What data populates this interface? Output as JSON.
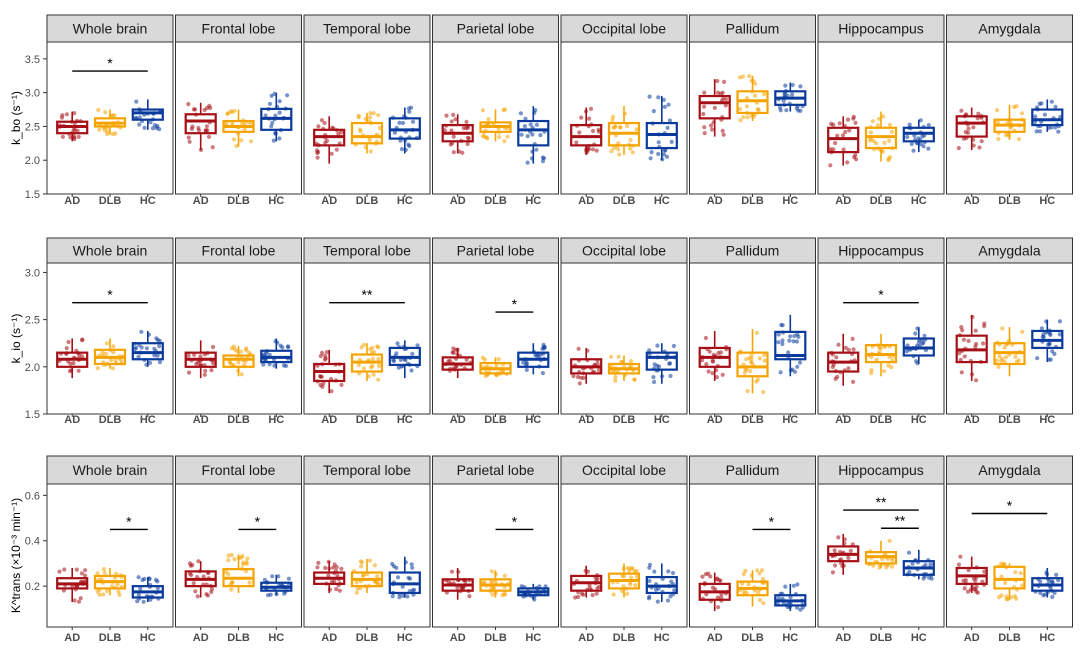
{
  "colors": {
    "AD": "#a50f15",
    "DLB": "#f5a300",
    "HC": "#0a3a9c",
    "strip_fill": "#d9d9d9",
    "axis_text": "#4d4d4d"
  },
  "groups": [
    "AD",
    "DLB",
    "HC"
  ],
  "chart_data": [
    {
      "type": "box",
      "ylabel": "k_bo (s⁻¹)",
      "ylim": [
        1.5,
        3.75
      ],
      "yticks": [
        "1.5",
        "2.0",
        "2.5",
        "3.0",
        "3.5"
      ],
      "ytick_values": [
        1.5,
        2.0,
        2.5,
        3.0,
        3.5
      ],
      "panels": [
        {
          "region": "Whole brain",
          "boxes": {
            "AD": [
              2.28,
              2.4,
              2.5,
              2.57,
              2.72
            ],
            "DLB": [
              2.38,
              2.5,
              2.55,
              2.62,
              2.75
            ],
            "HC": [
              2.45,
              2.6,
              2.7,
              2.75,
              2.9
            ]
          },
          "sig": [
            {
              "from": "AD",
              "to": "HC",
              "label": "*",
              "y": 3.32
            }
          ]
        },
        {
          "region": "Frontal lobe",
          "boxes": {
            "AD": [
              2.15,
              2.4,
              2.58,
              2.68,
              2.85
            ],
            "DLB": [
              2.2,
              2.42,
              2.5,
              2.58,
              2.75
            ],
            "HC": [
              2.28,
              2.45,
              2.62,
              2.76,
              3.0
            ]
          },
          "sig": []
        },
        {
          "region": "Temporal lobe",
          "boxes": {
            "AD": [
              1.95,
              2.22,
              2.35,
              2.45,
              2.65
            ],
            "DLB": [
              2.1,
              2.25,
              2.35,
              2.55,
              2.7
            ],
            "HC": [
              2.1,
              2.32,
              2.45,
              2.62,
              2.78
            ]
          },
          "sig": []
        },
        {
          "region": "Parietal lobe",
          "boxes": {
            "AD": [
              2.1,
              2.28,
              2.4,
              2.52,
              2.68
            ],
            "DLB": [
              2.28,
              2.42,
              2.5,
              2.56,
              2.75
            ],
            "HC": [
              1.95,
              2.22,
              2.45,
              2.58,
              2.8
            ]
          },
          "sig": []
        },
        {
          "region": "Occipital lobe",
          "boxes": {
            "AD": [
              2.08,
              2.22,
              2.35,
              2.52,
              2.78
            ],
            "DLB": [
              2.08,
              2.22,
              2.4,
              2.55,
              2.8
            ],
            "HC": [
              2.0,
              2.18,
              2.38,
              2.55,
              2.95
            ]
          },
          "sig": []
        },
        {
          "region": "Pallidum",
          "boxes": {
            "AD": [
              2.35,
              2.62,
              2.85,
              2.95,
              3.2
            ],
            "DLB": [
              2.58,
              2.7,
              2.88,
              3.02,
              3.25
            ],
            "HC": [
              2.72,
              2.82,
              2.92,
              3.02,
              3.15
            ]
          },
          "sig": []
        },
        {
          "region": "Hippocampus",
          "boxes": {
            "AD": [
              1.92,
              2.12,
              2.32,
              2.48,
              2.65
            ],
            "DLB": [
              1.98,
              2.18,
              2.35,
              2.48,
              2.72
            ],
            "HC": [
              2.12,
              2.28,
              2.4,
              2.48,
              2.6
            ]
          },
          "sig": []
        },
        {
          "region": "Amygdala",
          "boxes": {
            "AD": [
              2.15,
              2.35,
              2.55,
              2.65,
              2.78
            ],
            "DLB": [
              2.3,
              2.42,
              2.52,
              2.6,
              2.82
            ],
            "HC": [
              2.42,
              2.52,
              2.6,
              2.75,
              2.9
            ]
          },
          "sig": []
        }
      ]
    },
    {
      "type": "box",
      "ylabel": "k_io (s⁻¹)",
      "ylim": [
        1.5,
        3.1
      ],
      "yticks": [
        "1.5",
        "2.0",
        "2.5",
        "3.0"
      ],
      "ytick_values": [
        1.5,
        2.0,
        2.5,
        3.0
      ],
      "panels": [
        {
          "region": "Whole brain",
          "boxes": {
            "AD": [
              1.88,
              2.0,
              2.08,
              2.15,
              2.3
            ],
            "DLB": [
              1.98,
              2.03,
              2.1,
              2.18,
              2.3
            ],
            "HC": [
              2.0,
              2.08,
              2.15,
              2.25,
              2.38
            ]
          },
          "sig": [
            {
              "from": "AD",
              "to": "HC",
              "label": "*",
              "y": 2.68
            }
          ]
        },
        {
          "region": "Frontal lobe",
          "boxes": {
            "AD": [
              1.88,
              2.0,
              2.08,
              2.15,
              2.28
            ],
            "DLB": [
              1.9,
              2.0,
              2.08,
              2.12,
              2.22
            ],
            "HC": [
              1.98,
              2.05,
              2.1,
              2.17,
              2.3
            ]
          },
          "sig": []
        },
        {
          "region": "Temporal lobe",
          "boxes": {
            "AD": [
              1.72,
              1.85,
              1.95,
              2.03,
              2.18
            ],
            "DLB": [
              1.85,
              1.95,
              2.05,
              2.13,
              2.25
            ],
            "HC": [
              1.88,
              2.02,
              2.1,
              2.2,
              2.28
            ]
          },
          "sig": [
            {
              "from": "AD",
              "to": "HC",
              "label": "**",
              "y": 2.68
            }
          ]
        },
        {
          "region": "Parietal lobe",
          "boxes": {
            "AD": [
              1.88,
              1.97,
              2.03,
              2.1,
              2.2
            ],
            "DLB": [
              1.9,
              1.93,
              1.98,
              2.04,
              2.1
            ],
            "HC": [
              1.92,
              2.0,
              2.08,
              2.15,
              2.25
            ]
          },
          "sig": [
            {
              "from": "DLB",
              "to": "HC",
              "label": "*",
              "y": 2.58
            }
          ]
        },
        {
          "region": "Occipital lobe",
          "boxes": {
            "AD": [
              1.82,
              1.93,
              2.0,
              2.08,
              2.2
            ],
            "DLB": [
              1.85,
              1.93,
              1.98,
              2.03,
              2.12
            ],
            "HC": [
              1.82,
              1.97,
              2.1,
              2.15,
              2.25
            ]
          },
          "sig": []
        },
        {
          "region": "Pallidum",
          "boxes": {
            "AD": [
              1.85,
              2.0,
              2.1,
              2.2,
              2.38
            ],
            "DLB": [
              1.72,
              1.9,
              2.0,
              2.15,
              2.4
            ],
            "HC": [
              1.9,
              2.08,
              2.12,
              2.37,
              2.55
            ]
          },
          "sig": []
        },
        {
          "region": "Hippocampus",
          "boxes": {
            "AD": [
              1.8,
              1.95,
              2.05,
              2.15,
              2.35
            ],
            "DLB": [
              1.9,
              2.05,
              2.13,
              2.23,
              2.35
            ],
            "HC": [
              2.03,
              2.12,
              2.2,
              2.3,
              2.42
            ]
          },
          "sig": [
            {
              "from": "AD",
              "to": "HC",
              "label": "*",
              "y": 2.68
            }
          ]
        },
        {
          "region": "Amygdala",
          "boxes": {
            "AD": [
              1.85,
              2.05,
              2.18,
              2.33,
              2.55
            ],
            "DLB": [
              1.9,
              2.03,
              2.15,
              2.25,
              2.42
            ],
            "HC": [
              2.05,
              2.2,
              2.28,
              2.38,
              2.5
            ]
          },
          "sig": []
        }
      ]
    },
    {
      "type": "box",
      "ylabel": "K^trans (×10⁻³ min⁻¹)",
      "ylim": [
        0.02,
        0.65
      ],
      "yticks": [
        "0.2",
        "0.4",
        "0.6"
      ],
      "ytick_values": [
        0.2,
        0.4,
        0.6
      ],
      "panels": [
        {
          "region": "Whole brain",
          "boxes": {
            "AD": [
              0.13,
              0.19,
              0.21,
              0.235,
              0.28
            ],
            "DLB": [
              0.16,
              0.19,
              0.22,
              0.245,
              0.28
            ],
            "HC": [
              0.13,
              0.15,
              0.175,
              0.2,
              0.24
            ]
          },
          "sig": [
            {
              "from": "DLB",
              "to": "HC",
              "label": "*",
              "y": 0.45
            }
          ]
        },
        {
          "region": "Frontal lobe",
          "boxes": {
            "AD": [
              0.15,
              0.2,
              0.23,
              0.265,
              0.31
            ],
            "DLB": [
              0.17,
              0.2,
              0.235,
              0.275,
              0.34
            ],
            "HC": [
              0.16,
              0.18,
              0.195,
              0.215,
              0.25
            ]
          },
          "sig": [
            {
              "from": "DLB",
              "to": "HC",
              "label": "*",
              "y": 0.45
            }
          ]
        },
        {
          "region": "Temporal lobe",
          "boxes": {
            "AD": [
              0.17,
              0.21,
              0.235,
              0.26,
              0.31
            ],
            "DLB": [
              0.17,
              0.2,
              0.23,
              0.26,
              0.32
            ],
            "HC": [
              0.15,
              0.17,
              0.21,
              0.26,
              0.33
            ]
          },
          "sig": []
        },
        {
          "region": "Parietal lobe",
          "boxes": {
            "AD": [
              0.14,
              0.18,
              0.205,
              0.23,
              0.28
            ],
            "DLB": [
              0.15,
              0.18,
              0.205,
              0.23,
              0.27
            ],
            "HC": [
              0.14,
              0.16,
              0.175,
              0.19,
              0.21
            ]
          },
          "sig": [
            {
              "from": "DLB",
              "to": "HC",
              "label": "*",
              "y": 0.45
            }
          ]
        },
        {
          "region": "Occipital lobe",
          "boxes": {
            "AD": [
              0.15,
              0.18,
              0.215,
              0.245,
              0.29
            ],
            "DLB": [
              0.15,
              0.19,
              0.225,
              0.255,
              0.3
            ],
            "HC": [
              0.13,
              0.17,
              0.2,
              0.24,
              0.3
            ]
          },
          "sig": []
        },
        {
          "region": "Pallidum",
          "boxes": {
            "AD": [
              0.09,
              0.14,
              0.175,
              0.21,
              0.26
            ],
            "DLB": [
              0.11,
              0.16,
              0.19,
              0.22,
              0.27
            ],
            "HC": [
              0.09,
              0.115,
              0.135,
              0.16,
              0.21
            ]
          },
          "sig": [
            {
              "from": "DLB",
              "to": "HC",
              "label": "*",
              "y": 0.45
            }
          ]
        },
        {
          "region": "Hippocampus",
          "boxes": {
            "AD": [
              0.25,
              0.31,
              0.34,
              0.375,
              0.43
            ],
            "DLB": [
              0.28,
              0.3,
              0.33,
              0.35,
              0.4
            ],
            "HC": [
              0.23,
              0.25,
              0.28,
              0.31,
              0.36
            ]
          },
          "sig": [
            {
              "from": "AD",
              "to": "HC",
              "label": "**",
              "y": 0.535
            },
            {
              "from": "DLB",
              "to": "HC",
              "label": "**",
              "y": 0.455
            }
          ]
        },
        {
          "region": "Amygdala",
          "boxes": {
            "AD": [
              0.17,
              0.21,
              0.245,
              0.28,
              0.33
            ],
            "DLB": [
              0.14,
              0.19,
              0.23,
              0.285,
              0.3
            ],
            "HC": [
              0.15,
              0.18,
              0.205,
              0.235,
              0.28
            ]
          },
          "sig": [
            {
              "from": "AD",
              "to": "HC",
              "label": "*",
              "y": 0.52
            }
          ]
        }
      ]
    }
  ]
}
